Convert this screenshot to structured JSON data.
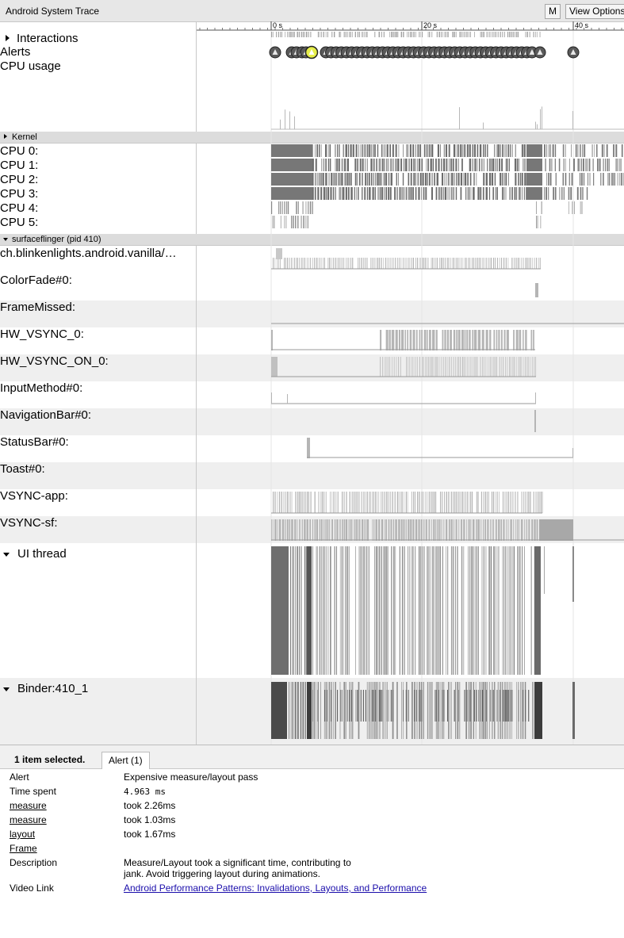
{
  "window": {
    "title": "Android System Trace",
    "m_button": "M",
    "view_options": "View Options"
  },
  "timeline": {
    "ticks": [
      "0 s",
      "20 s",
      "40 s"
    ]
  },
  "tracks": {
    "interactions": "Interactions",
    "alerts": "Alerts",
    "cpu_usage": "CPU usage",
    "kernel": "Kernel",
    "cpus": [
      "CPU 0:",
      "CPU 1:",
      "CPU 2:",
      "CPU 3:",
      "CPU 4:",
      "CPU 5:"
    ],
    "process": "surfaceflinger (pid 410)",
    "counters": [
      "ch.blinkenlights.android.vanilla/…",
      "ColorFade#0:",
      "FrameMissed:",
      "HW_VSYNC_0:",
      "HW_VSYNC_ON_0:",
      "InputMethod#0:",
      "NavigationBar#0:",
      "StatusBar#0:",
      "Toast#0:",
      "VSYNC-app:",
      "VSYNC-sf:"
    ],
    "ui_thread": "UI thread",
    "binder": "Binder:410_1"
  },
  "details": {
    "selection": "1 item selected.",
    "tab": "Alert (1)",
    "rows": [
      {
        "key": "Alert",
        "value": "Expensive measure/layout pass"
      },
      {
        "key": "Time spent",
        "value": "4.963 ms"
      },
      {
        "key": "measure",
        "value": "took 2.26ms"
      },
      {
        "key": "measure",
        "value": "took 1.03ms"
      },
      {
        "key": "layout",
        "value": "took 1.67ms"
      },
      {
        "key": "Frame",
        "value": ""
      },
      {
        "key": "Description",
        "value": "Measure/Layout took a significant time, contributing to"
      },
      {
        "key": "",
        "value": "jank. Avoid triggering layout during animations."
      },
      {
        "key": "Video Link",
        "value": "Android Performance Patterns: Invalidations, Layouts, and Performance"
      }
    ]
  },
  "colors": {
    "slice": "#7a7a7a",
    "light_slice": "#b0b0b0",
    "alert_fill": "#5a5a5a",
    "selected_alert": "#e6ee4a",
    "link": "#1a0dab"
  }
}
